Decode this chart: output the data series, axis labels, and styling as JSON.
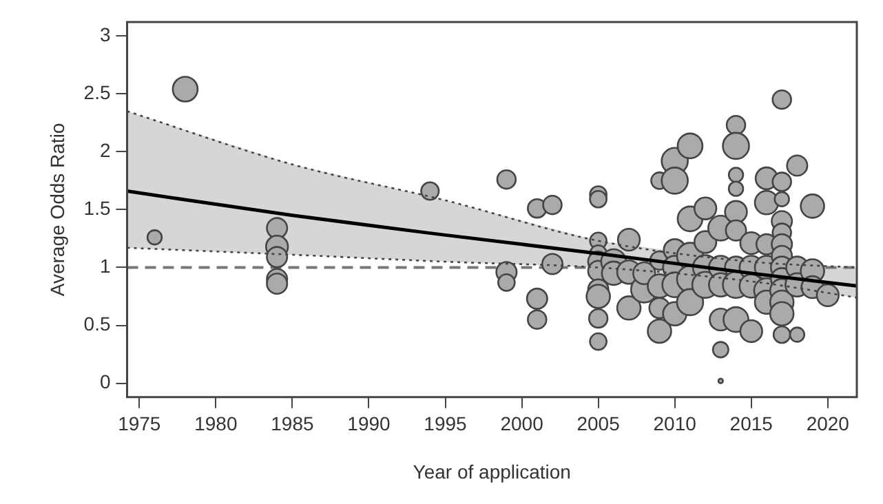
{
  "chart_data": {
    "type": "bubble",
    "xlabel": "Year of application",
    "ylabel": "Average Odds Ratio",
    "xlim": [
      1974.2,
      2021.9
    ],
    "ylim": [
      -0.12,
      3.12
    ],
    "xticks": [
      1975,
      1980,
      1985,
      1990,
      1995,
      2000,
      2005,
      2010,
      2015,
      2020
    ],
    "yticks": [
      0,
      {
        "value": 0.5,
        "label": "0.5"
      },
      1,
      {
        "value": 1.5,
        "label": "1.5"
      },
      2,
      {
        "value": 2.5,
        "label": "2.5"
      },
      3
    ],
    "grid": false,
    "legend": false,
    "ref_lines": [
      {
        "axis": "y",
        "value": 1,
        "color": "#777777",
        "line_style": "dashed"
      }
    ],
    "series": [
      {
        "type": "line",
        "color": "#000000",
        "x": [
          1974.2,
          1985,
          1995,
          2005,
          2015,
          2021.9
        ],
        "values": [
          1.66,
          1.45,
          1.28,
          1.12,
          0.95,
          0.84
        ],
        "lower": [
          1.17,
          1.11,
          1.05,
          1.0,
          0.88,
          0.74
        ],
        "upper": [
          2.35,
          1.89,
          1.58,
          1.23,
          1.05,
          1.0
        ]
      },
      {
        "type": "line",
        "color": "#444444",
        "line_style": "dotted",
        "x": [
          1974.2,
          1985,
          1995,
          2005,
          2015,
          2021.9
        ],
        "values": [
          2.35,
          1.89,
          1.58,
          1.23,
          1.05,
          1.0
        ]
      },
      {
        "type": "line",
        "color": "#444444",
        "line_style": "dotted",
        "x": [
          1974.2,
          1985,
          1995,
          2005,
          2015,
          2021.9
        ],
        "values": [
          1.17,
          1.11,
          1.05,
          1.0,
          0.88,
          0.74
        ]
      },
      {
        "color": "#aaaaaa",
        "x": [
          1976,
          1978,
          1984,
          1984,
          1984,
          1984,
          1984,
          1994,
          1999,
          1999,
          1999,
          2001,
          2001,
          2001,
          2002,
          2002,
          2005,
          2005,
          2005,
          2005,
          2005,
          2005,
          2005,
          2005,
          2005,
          2005,
          2006,
          2006,
          2007,
          2007,
          2007,
          2008,
          2008,
          2009,
          2009,
          2009,
          2009,
          2009,
          2010,
          2010,
          2010,
          2010,
          2010,
          2010,
          2011,
          2011,
          2011,
          2011,
          2011,
          2012,
          2012,
          2012,
          2012,
          2013,
          2013,
          2013,
          2013,
          2013,
          2013,
          2014,
          2014,
          2014,
          2014,
          2014,
          2014,
          2014,
          2014,
          2014,
          2015,
          2015,
          2015,
          2015,
          2016,
          2016,
          2016,
          2016,
          2016,
          2016,
          2017,
          2017,
          2017,
          2017,
          2017,
          2017,
          2017,
          2017,
          2017,
          2017,
          2017,
          2017,
          2017,
          2018,
          2018,
          2018,
          2018,
          2019,
          2019,
          2019,
          2020
        ],
        "values": [
          1.26,
          2.54,
          1.34,
          1.18,
          1.09,
          0.9,
          0.86,
          1.66,
          1.76,
          0.96,
          0.87,
          1.51,
          0.73,
          0.55,
          1.54,
          1.03,
          1.63,
          1.59,
          1.23,
          1.12,
          1.05,
          0.97,
          0.81,
          0.75,
          0.56,
          0.36,
          1.05,
          0.95,
          1.24,
          0.96,
          0.65,
          0.81,
          0.95,
          1.75,
          1.06,
          0.84,
          0.65,
          0.45,
          1.92,
          1.75,
          1.15,
          1.0,
          0.85,
          0.6,
          2.05,
          1.42,
          1.1,
          0.9,
          0.7,
          1.51,
          1.22,
          1.0,
          0.85,
          1.34,
          1.0,
          0.85,
          0.55,
          0.29,
          0.02,
          2.23,
          2.05,
          1.8,
          1.68,
          1.48,
          1.32,
          1.0,
          0.85,
          0.55,
          1.21,
          1.0,
          0.84,
          0.45,
          1.77,
          1.56,
          1.2,
          1.0,
          0.8,
          0.7,
          2.45,
          1.74,
          1.59,
          1.4,
          1.3,
          1.2,
          1.1,
          1.0,
          0.9,
          0.8,
          0.7,
          0.6,
          0.42,
          1.88,
          1.0,
          0.85,
          0.42,
          1.53,
          0.97,
          0.83,
          0.76
        ],
        "sizes": [
          0.3,
          0.9,
          0.6,
          0.7,
          0.6,
          0.6,
          0.6,
          0.45,
          0.5,
          0.6,
          0.4,
          0.5,
          0.6,
          0.5,
          0.5,
          0.6,
          0.4,
          0.4,
          0.4,
          0.4,
          0.6,
          0.6,
          0.6,
          0.8,
          0.5,
          0.4,
          0.9,
          0.8,
          0.7,
          0.8,
          0.8,
          1.0,
          0.7,
          0.4,
          0.5,
          0.8,
          0.6,
          0.8,
          1.0,
          1.0,
          0.7,
          0.8,
          0.9,
          0.8,
          0.9,
          0.9,
          1.0,
          1.0,
          1.0,
          0.7,
          0.7,
          0.9,
          1.0,
          0.9,
          0.8,
          0.8,
          0.7,
          0.35,
          0.03,
          0.5,
          1.0,
          0.3,
          0.3,
          0.7,
          0.6,
          0.7,
          1.0,
          0.9,
          0.7,
          0.8,
          0.8,
          0.7,
          0.7,
          0.8,
          0.6,
          0.8,
          0.9,
          0.8,
          0.5,
          0.5,
          0.3,
          0.6,
          0.5,
          0.6,
          0.6,
          0.7,
          0.7,
          0.8,
          0.8,
          0.8,
          0.4,
          0.6,
          0.7,
          0.8,
          0.3,
          0.8,
          0.8,
          0.7,
          0.7
        ]
      }
    ]
  }
}
